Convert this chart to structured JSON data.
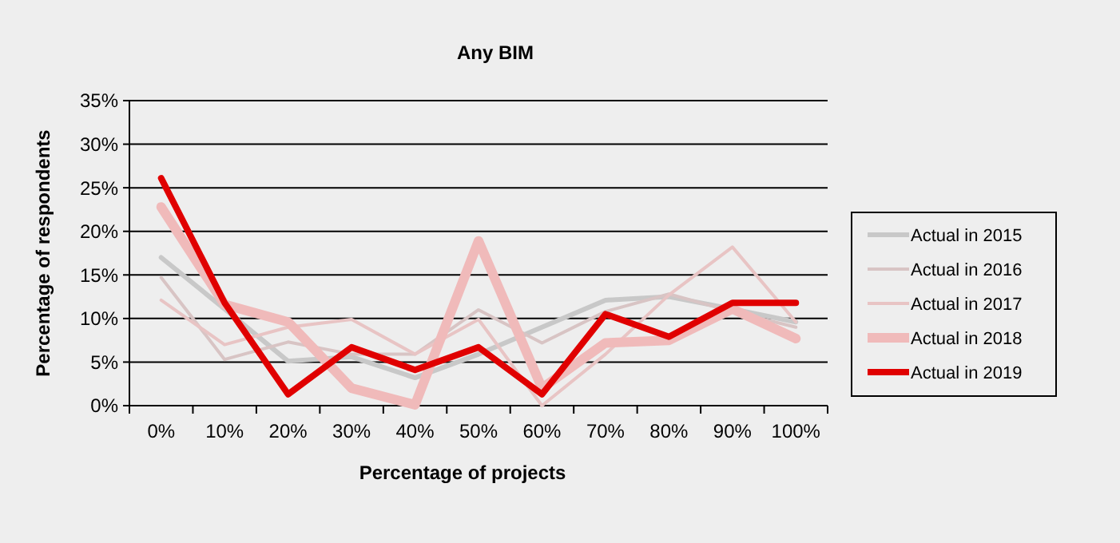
{
  "chart_data": {
    "type": "line",
    "title": "Any BIM",
    "xlabel": "Percentage of projects",
    "ylabel": "Percentage of respondents",
    "categories": [
      "0%",
      "10%",
      "20%",
      "30%",
      "40%",
      "50%",
      "60%",
      "70%",
      "80%",
      "90%",
      "100%"
    ],
    "series": [
      {
        "name": "Actual in 2015",
        "color": "#c8c8c8",
        "values": [
          17.0,
          11.1,
          5.1,
          5.6,
          3.2,
          5.9,
          9.0,
          12.1,
          12.5,
          11.1,
          9.6
        ]
      },
      {
        "name": "Actual in 2016",
        "color": "#d8c4c4",
        "values": [
          14.7,
          5.3,
          7.3,
          5.9,
          5.9,
          11.0,
          7.2,
          10.8,
          12.8,
          10.8,
          9.0
        ]
      },
      {
        "name": "Actual in 2017",
        "color": "#e8c4c4",
        "values": [
          12.1,
          7.0,
          9.0,
          9.9,
          5.9,
          9.9,
          0,
          5.9,
          12.7,
          18.2,
          9.6
        ]
      },
      {
        "name": "Actual in 2018",
        "color": "#f0baba",
        "values": [
          22.8,
          11.6,
          9.6,
          2.0,
          0.1,
          18.9,
          2.0,
          7.2,
          7.5,
          11.1,
          7.7
        ]
      },
      {
        "name": "Actual in 2019",
        "color": "#e00000",
        "values": [
          26.1,
          11.8,
          1.3,
          6.7,
          4.1,
          6.7,
          1.3,
          10.5,
          7.9,
          11.8,
          11.8
        ]
      }
    ],
    "ylim": [
      0,
      35
    ],
    "yticks": [
      {
        "value": 0,
        "label": "0%"
      },
      {
        "value": 5,
        "label": "5%"
      },
      {
        "value": 10,
        "label": "10%"
      },
      {
        "value": 15,
        "label": "15%"
      },
      {
        "value": 20,
        "label": "20%"
      },
      {
        "value": 25,
        "label": "25%"
      },
      {
        "value": 30,
        "label": "30%"
      },
      {
        "value": 35,
        "label": "35%"
      }
    ],
    "grid": "y",
    "legend": "right",
    "line_style": "solid"
  }
}
